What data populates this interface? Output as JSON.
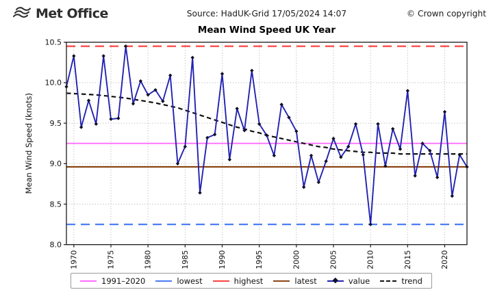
{
  "header": {
    "logo_text": "Met Office",
    "source": "Source: HadUK-Grid 17/05/2024 14:07",
    "copyright": "© Crown copyright"
  },
  "chart_data": {
    "type": "line",
    "title": "Mean Wind Speed UK Year",
    "xlabel": "",
    "ylabel": "Mean Wind Speed (knots)",
    "xlim": [
      1969,
      2023
    ],
    "ylim": [
      8.0,
      10.5
    ],
    "xticks": [
      1970,
      1975,
      1980,
      1985,
      1990,
      1995,
      2000,
      2005,
      2010,
      2015,
      2020
    ],
    "ytick_labels": [
      "8.0",
      "8.5",
      "9.0",
      "9.5",
      "10.0",
      "10.5"
    ],
    "grid": true,
    "legend_position": "bottom",
    "years": [
      1969,
      1970,
      1971,
      1972,
      1973,
      1974,
      1975,
      1976,
      1977,
      1978,
      1979,
      1980,
      1981,
      1982,
      1983,
      1984,
      1985,
      1986,
      1987,
      1988,
      1989,
      1990,
      1991,
      1992,
      1993,
      1994,
      1995,
      1996,
      1997,
      1998,
      1999,
      2000,
      2001,
      2002,
      2003,
      2004,
      2005,
      2006,
      2007,
      2008,
      2009,
      2010,
      2011,
      2012,
      2013,
      2014,
      2015,
      2016,
      2017,
      2018,
      2019,
      2020,
      2021,
      2022,
      2023
    ],
    "series": [
      {
        "name": "value",
        "color": "#2121b3",
        "marker": "diamond",
        "marker_color": "#10102a",
        "values": [
          9.95,
          10.33,
          9.45,
          9.78,
          9.49,
          10.33,
          9.55,
          9.56,
          10.45,
          9.74,
          10.02,
          9.85,
          9.91,
          9.77,
          10.09,
          9.0,
          9.21,
          10.31,
          8.64,
          9.32,
          9.36,
          10.11,
          9.05,
          9.68,
          9.41,
          10.15,
          9.49,
          9.35,
          9.1,
          9.73,
          9.57,
          9.4,
          8.71,
          9.1,
          8.77,
          9.03,
          9.31,
          9.08,
          9.21,
          9.49,
          9.11,
          8.25,
          9.49,
          8.97,
          9.43,
          9.18,
          9.9,
          8.85,
          9.25,
          9.16,
          8.83,
          9.64,
          8.6,
          9.11,
          8.96
        ]
      },
      {
        "name": "trend",
        "color": "#111111",
        "style": "dashed",
        "values": [
          9.87,
          9.865,
          9.86,
          9.855,
          9.85,
          9.84,
          9.83,
          9.82,
          9.81,
          9.795,
          9.78,
          9.765,
          9.75,
          9.73,
          9.71,
          9.69,
          9.66,
          9.63,
          9.6,
          9.57,
          9.54,
          9.51,
          9.48,
          9.45,
          9.43,
          9.4,
          9.38,
          9.35,
          9.33,
          9.31,
          9.29,
          9.27,
          9.25,
          9.23,
          9.21,
          9.2,
          9.18,
          9.17,
          9.16,
          9.15,
          9.14,
          9.14,
          9.13,
          9.13,
          9.13,
          9.12,
          9.12,
          9.12,
          9.12,
          9.12,
          9.12,
          9.12,
          9.12,
          9.12,
          9.12
        ]
      }
    ],
    "reference_lines": [
      {
        "name": "highest",
        "value": 10.45,
        "color": "#fb4343",
        "style": "dashed"
      },
      {
        "name": "1991–2020",
        "value": 9.25,
        "color": "#ff6dff",
        "style": "solid"
      },
      {
        "name": "latest",
        "value": 8.96,
        "color": "#8a4513",
        "style": "solid"
      },
      {
        "name": "lowest",
        "value": 8.25,
        "color": "#4a7cf7",
        "style": "dashed"
      }
    ]
  },
  "legend": {
    "items": [
      {
        "label": "1991–2020"
      },
      {
        "label": "lowest"
      },
      {
        "label": "highest"
      },
      {
        "label": "latest"
      },
      {
        "label": "value"
      },
      {
        "label": "trend"
      }
    ]
  }
}
